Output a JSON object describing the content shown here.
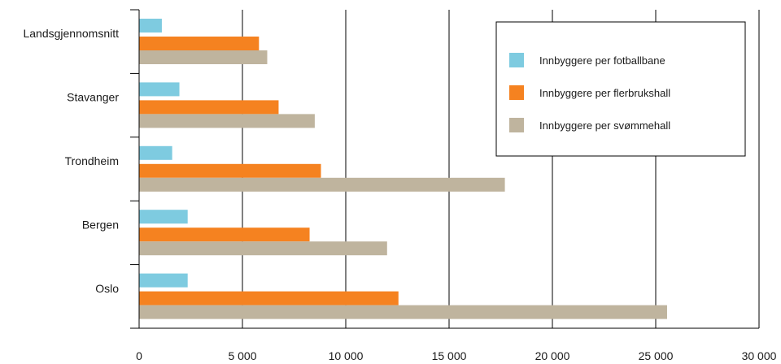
{
  "chart_data": {
    "type": "bar",
    "orientation": "horizontal",
    "categories": [
      "Landsgjennomsnitt",
      "Stavanger",
      "Trondheim",
      "Bergen",
      "Oslo"
    ],
    "series": [
      {
        "name": "Innbyggere per fotballbane",
        "color": "#7ecbe0",
        "values": [
          1100,
          1950,
          1600,
          2350,
          2350
        ]
      },
      {
        "name": "Innbyggere per flerbrukshall",
        "color": "#f58220",
        "values": [
          5800,
          6750,
          8800,
          8250,
          12550
        ]
      },
      {
        "name": "Innbyggere per svømmehall",
        "color": "#bfb49e",
        "values": [
          6200,
          8500,
          17700,
          12000,
          25550
        ]
      }
    ],
    "xlim": [
      0,
      30000
    ],
    "xticks": [
      0,
      5000,
      10000,
      15000,
      20000,
      25000,
      30000
    ],
    "xtick_labels": [
      "0",
      "5 000",
      "10 000",
      "15 000",
      "20 000",
      "25 000",
      "30 000"
    ],
    "grid": "vertical",
    "legend": "top-right",
    "title": "",
    "xlabel": "",
    "ylabel": ""
  }
}
